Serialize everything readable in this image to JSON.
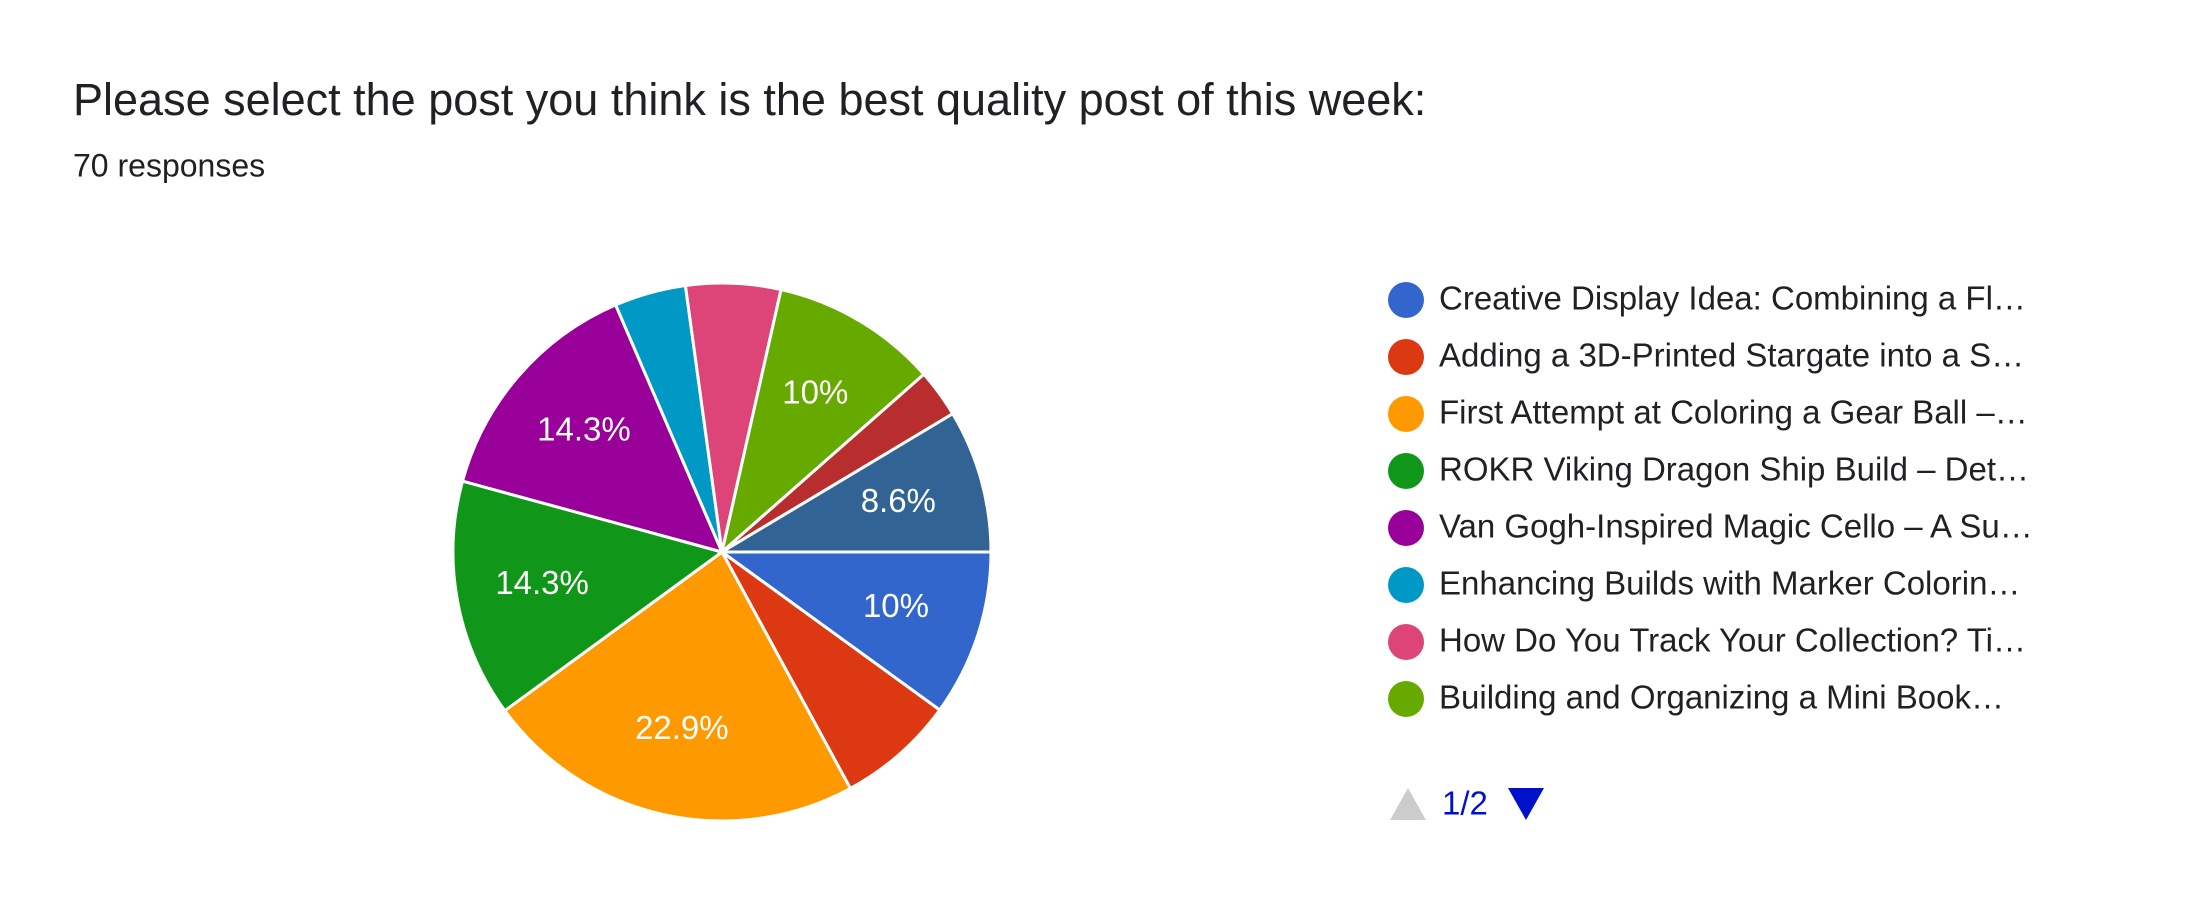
{
  "chart_data": {
    "type": "pie",
    "title": "Please select the post you think is the best quality post of this week:",
    "subtitle": "70 responses",
    "categories": [
      "Creative Display Idea: Combining a Fl…",
      "Adding a 3D-Printed Stargate into a S…",
      "First Attempt at Coloring a Gear Ball –…",
      "ROKR Viking Dragon Ship Build – Det…",
      "Van Gogh-Inspired Magic Cello – A Su…",
      "Enhancing Builds with Marker Colorin…",
      "How Do You Track Your Collection? Ti…",
      "Building and Organizing a Mini Book…",
      null,
      null
    ],
    "values": [
      10,
      7.1,
      22.9,
      14.3,
      14.3,
      4.3,
      5.7,
      10,
      2.9,
      8.6
    ],
    "value_labels": [
      "10%",
      null,
      "22.9%",
      "14.3%",
      "14.3%",
      null,
      null,
      "10%",
      null,
      "8.6%"
    ],
    "colors": [
      "#3366cc",
      "#dc3912",
      "#ff9900",
      "#109618",
      "#990099",
      "#0099c6",
      "#dd4477",
      "#66aa00",
      "#b82e2e",
      "#316395"
    ],
    "legend_page": "1/2"
  }
}
